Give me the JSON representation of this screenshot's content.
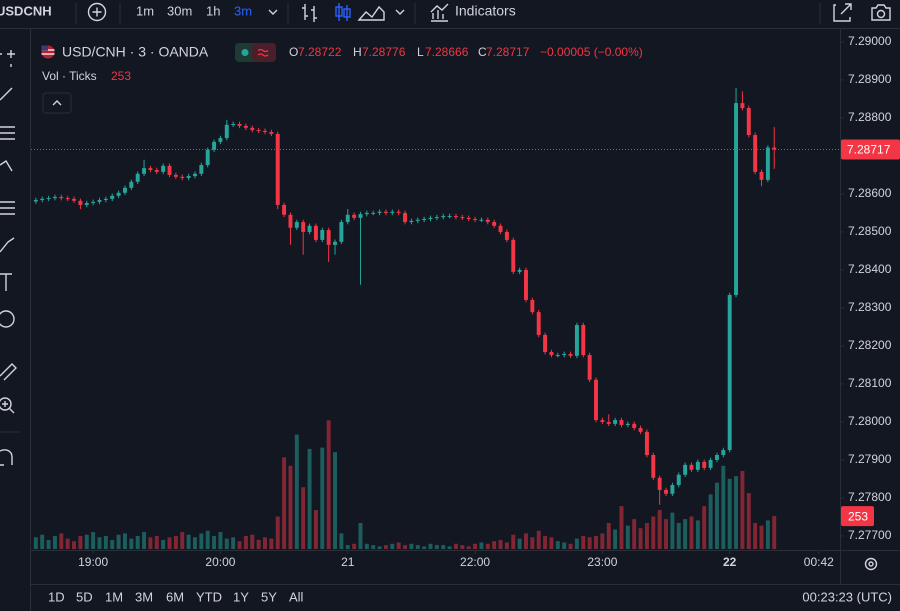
{
  "toolbar": {
    "symbol": "USDCNH",
    "intervals": [
      "1m",
      "30m",
      "1h",
      "3m"
    ],
    "indicators": "Indicators"
  },
  "legend": {
    "title": "USD/CNH · 3 · OANDA",
    "open_label": "O",
    "high_label": "H",
    "low_label": "L",
    "close_label": "C",
    "change": "−0.00005 (−0.00%)",
    "volume_title": "Vol · Ticks"
  },
  "chart_data": {
    "type": "candlestick",
    "up_color": "#26a69a",
    "down_color": "#f23645",
    "ylim": [
      7.27663,
      7.29034
    ],
    "yticks": [
      {
        "value": 7.277,
        "label": "7.27700"
      },
      {
        "value": 7.278,
        "label": "7.27800"
      },
      {
        "value": 7.279,
        "label": "7.27900"
      },
      {
        "value": 7.28,
        "label": "7.28000"
      },
      {
        "value": 7.281,
        "label": "7.28100"
      },
      {
        "value": 7.282,
        "label": "7.28200"
      },
      {
        "value": 7.283,
        "label": "7.28300"
      },
      {
        "value": 7.284,
        "label": "7.28400"
      },
      {
        "value": 7.285,
        "label": "7.28500"
      },
      {
        "value": 7.286,
        "label": "7.28600"
      },
      {
        "value": 7.287,
        "label": "7.28700"
      },
      {
        "value": 7.288,
        "label": "7.28800"
      },
      {
        "value": 7.289,
        "label": "7.28900"
      },
      {
        "value": 7.29,
        "label": "7.29000"
      }
    ],
    "xlim": [
      -0.76,
      126.33
    ],
    "xticks": [
      {
        "value": 9,
        "label": "19:00"
      },
      {
        "value": 29,
        "label": "20:00"
      },
      {
        "value": 49,
        "label": "21"
      },
      {
        "value": 69,
        "label": "22:00"
      },
      {
        "value": 89,
        "label": "23:00"
      },
      {
        "value": 109,
        "label": "22"
      },
      {
        "value": 123,
        "label": "00:42"
      }
    ],
    "volume_lim": [
      0,
      1000
    ],
    "grid": false,
    "last_price_line": true,
    "open": [
      7.2858,
      7.28584,
      7.28587,
      7.28589,
      7.28592,
      7.28589,
      7.28587,
      7.28582,
      7.28571,
      7.28576,
      7.28579,
      7.28584,
      7.28587,
      7.28595,
      7.28603,
      7.28616,
      7.28632,
      7.28653,
      7.28668,
      7.28663,
      7.28658,
      7.28674,
      7.2865,
      7.28645,
      7.28642,
      7.28647,
      7.28653,
      7.28676,
      7.28716,
      7.28737,
      7.28747,
      7.28782,
      7.28784,
      7.28779,
      7.28774,
      7.28768,
      7.28766,
      7.28763,
      7.28758,
      7.28571,
      7.28545,
      7.28511,
      7.28526,
      7.285,
      7.28516,
      7.28479,
      7.28505,
      7.28466,
      7.28474,
      7.28526,
      7.28545,
      7.28537,
      7.28547,
      7.2855,
      7.2855,
      7.28553,
      7.2855,
      7.28553,
      7.2855,
      7.28526,
      7.28529,
      7.28532,
      7.28534,
      7.28537,
      7.28539,
      7.28542,
      7.28542,
      7.28539,
      7.28537,
      7.28534,
      7.28532,
      7.28532,
      7.28526,
      7.28516,
      7.285,
      7.28479,
      7.28395,
      7.284,
      7.28321,
      7.28289,
      7.28229,
      7.28184,
      7.28176,
      7.28176,
      7.28179,
      7.28174,
      7.28255,
      7.28176,
      7.28111,
      7.28005,
      7.28,
      7.27995,
      7.28005,
      7.27992,
      7.27995,
      7.27984,
      7.27974,
      7.27913,
      7.27853,
      7.27821,
      7.27811,
      7.27834,
      7.27861,
      7.27887,
      7.27874,
      7.27895,
      7.27879,
      7.279,
      7.27913,
      7.27926,
      7.28334,
      7.28839,
      7.28826,
      7.28755,
      7.28658,
      7.28637,
      7.28722
    ],
    "high": [
      7.2859,
      7.28593,
      7.28595,
      7.28598,
      7.28598,
      7.28595,
      7.28593,
      7.28588,
      7.28582,
      7.28585,
      7.2859,
      7.28593,
      7.28601,
      7.28609,
      7.28622,
      7.28638,
      7.28659,
      7.2869,
      7.28674,
      7.28669,
      7.2868,
      7.2868,
      7.28656,
      7.28651,
      7.28653,
      7.28659,
      7.28682,
      7.28722,
      7.28743,
      7.28753,
      7.28795,
      7.2879,
      7.2879,
      7.28785,
      7.2878,
      7.28774,
      7.28772,
      7.28769,
      7.28764,
      7.28577,
      7.28551,
      7.28532,
      7.28532,
      7.28522,
      7.28522,
      7.28511,
      7.28511,
      7.2848,
      7.28532,
      7.2856,
      7.28551,
      7.28553,
      7.28556,
      7.28556,
      7.28559,
      7.28559,
      7.28559,
      7.28559,
      7.28556,
      7.28535,
      7.28538,
      7.2854,
      7.28543,
      7.28545,
      7.28548,
      7.28548,
      7.28548,
      7.28545,
      7.28543,
      7.2854,
      7.28538,
      7.28538,
      7.28532,
      7.28522,
      7.28506,
      7.28485,
      7.28406,
      7.28406,
      7.28327,
      7.28295,
      7.28235,
      7.2819,
      7.28182,
      7.28185,
      7.28185,
      7.28261,
      7.28261,
      7.28182,
      7.28117,
      7.28011,
      7.2802,
      7.28011,
      7.28011,
      7.28001,
      7.28001,
      7.2799,
      7.2798,
      7.27919,
      7.27859,
      7.27827,
      7.2784,
      7.27867,
      7.27893,
      7.27893,
      7.27901,
      7.27901,
      7.27906,
      7.27919,
      7.27932,
      7.2834,
      7.28879,
      7.2887,
      7.28832,
      7.28761,
      7.28664,
      7.28728,
      7.28776
    ],
    "low": [
      7.28574,
      7.28578,
      7.28581,
      7.28583,
      7.28583,
      7.28581,
      7.28576,
      7.2856,
      7.28565,
      7.2857,
      7.28573,
      7.28578,
      7.28581,
      7.28589,
      7.28597,
      7.2861,
      7.28626,
      7.28647,
      7.28657,
      7.28652,
      7.28652,
      7.28644,
      7.28639,
      7.28636,
      7.28636,
      7.28641,
      7.28647,
      7.2867,
      7.2871,
      7.28731,
      7.28741,
      7.28776,
      7.28773,
      7.28768,
      7.28762,
      7.2876,
      7.28757,
      7.28752,
      7.2856,
      7.28539,
      7.28466,
      7.28505,
      7.2844,
      7.28494,
      7.28473,
      7.28473,
      7.28421,
      7.2844,
      7.28468,
      7.2852,
      7.28531,
      7.28361,
      7.28541,
      7.28544,
      7.28544,
      7.28544,
      7.28544,
      7.28544,
      7.2852,
      7.2852,
      7.28523,
      7.28526,
      7.28528,
      7.28531,
      7.28533,
      7.28536,
      7.28533,
      7.28531,
      7.28528,
      7.28526,
      7.28526,
      7.2852,
      7.2851,
      7.28494,
      7.28473,
      7.28389,
      7.28389,
      7.28315,
      7.28283,
      7.28223,
      7.28178,
      7.2817,
      7.2817,
      7.2817,
      7.28168,
      7.28168,
      7.2817,
      7.28105,
      7.27999,
      7.27994,
      7.27989,
      7.27989,
      7.27986,
      7.27986,
      7.27978,
      7.27968,
      7.27907,
      7.27847,
      7.27782,
      7.27805,
      7.27805,
      7.27828,
      7.27855,
      7.27868,
      7.27868,
      7.27873,
      7.27873,
      7.27894,
      7.27907,
      7.2792,
      7.28328,
      7.2882,
      7.28749,
      7.28652,
      7.2862,
      7.28631,
      7.28666
    ],
    "close": [
      7.28584,
      7.28587,
      7.28589,
      7.28592,
      7.28589,
      7.28587,
      7.28582,
      7.28571,
      7.28576,
      7.28579,
      7.28584,
      7.28587,
      7.28595,
      7.28603,
      7.28616,
      7.28632,
      7.28653,
      7.28668,
      7.28663,
      7.28658,
      7.28674,
      7.2865,
      7.28645,
      7.28642,
      7.28647,
      7.28653,
      7.28676,
      7.28716,
      7.28737,
      7.28747,
      7.28782,
      7.28784,
      7.28779,
      7.28774,
      7.28768,
      7.28766,
      7.28763,
      7.28758,
      7.28571,
      7.28545,
      7.28511,
      7.28526,
      7.285,
      7.28516,
      7.28479,
      7.28505,
      7.28466,
      7.28474,
      7.28526,
      7.28545,
      7.28537,
      7.28547,
      7.2855,
      7.2855,
      7.28553,
      7.2855,
      7.28553,
      7.2855,
      7.28526,
      7.28529,
      7.28532,
      7.28534,
      7.28537,
      7.28539,
      7.28542,
      7.28542,
      7.28539,
      7.28537,
      7.28534,
      7.28532,
      7.28532,
      7.28526,
      7.28516,
      7.285,
      7.28479,
      7.28395,
      7.284,
      7.28321,
      7.28289,
      7.28229,
      7.28184,
      7.28176,
      7.28176,
      7.28179,
      7.28174,
      7.28255,
      7.28176,
      7.28111,
      7.28005,
      7.28,
      7.27995,
      7.28005,
      7.27992,
      7.27995,
      7.27984,
      7.27974,
      7.27913,
      7.27853,
      7.27821,
      7.27811,
      7.27834,
      7.27861,
      7.27887,
      7.27874,
      7.27895,
      7.27879,
      7.279,
      7.27913,
      7.27926,
      7.28334,
      7.28839,
      7.28826,
      7.28755,
      7.28658,
      7.28637,
      7.28722,
      7.28717
    ],
    "volume": [
      90,
      110,
      70,
      100,
      120,
      80,
      60,
      100,
      110,
      130,
      90,
      100,
      70,
      110,
      120,
      80,
      100,
      130,
      90,
      100,
      70,
      90,
      100,
      130,
      110,
      90,
      120,
      140,
      100,
      130,
      80,
      90,
      60,
      100,
      110,
      70,
      90,
      80,
      250,
      705,
      640,
      880,
      475,
      770,
      300,
      780,
      990,
      745,
      120,
      30,
      40,
      200,
      40,
      30,
      20,
      30,
      40,
      50,
      30,
      40,
      30,
      20,
      40,
      30,
      30,
      20,
      40,
      30,
      20,
      40,
      50,
      40,
      60,
      70,
      50,
      110,
      80,
      120,
      90,
      140,
      100,
      90,
      60,
      50,
      40,
      80,
      100,
      90,
      100,
      120,
      200,
      150,
      330,
      180,
      230,
      160,
      200,
      250,
      300,
      230,
      280,
      200,
      230,
      250,
      220,
      330,
      420,
      510,
      640,
      540,
      560,
      600,
      430,
      200,
      180,
      220,
      253
    ]
  },
  "ranges": [
    "1D",
    "5D",
    "1M",
    "3M",
    "6M",
    "YTD",
    "1Y",
    "5Y",
    "All"
  ],
  "clock": "00:23:23 (UTC)"
}
